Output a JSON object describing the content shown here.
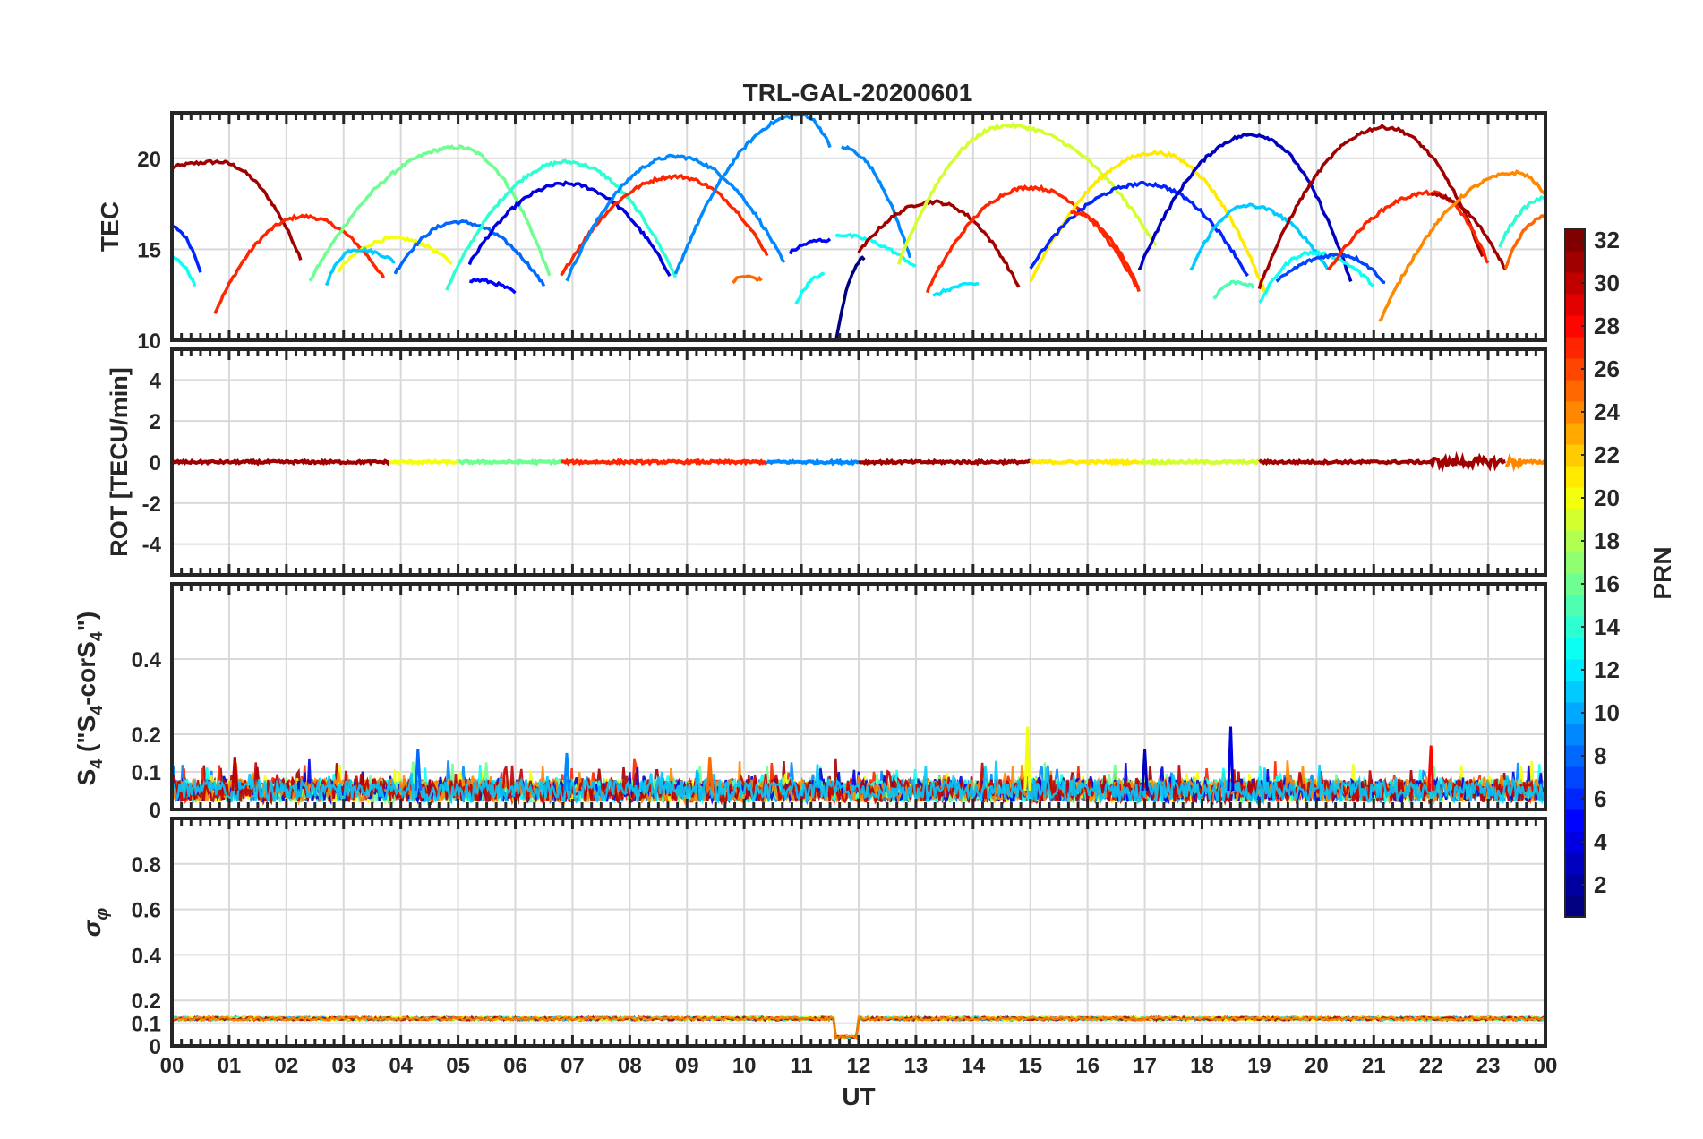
{
  "chart_data": {
    "type": "line",
    "title": "TRL-GAL-20200601",
    "xlabel": "UT",
    "x_ticks": [
      "00",
      "01",
      "02",
      "03",
      "04",
      "05",
      "06",
      "07",
      "08",
      "09",
      "10",
      "11",
      "12",
      "13",
      "14",
      "15",
      "16",
      "17",
      "18",
      "19",
      "20",
      "21",
      "22",
      "23",
      "00"
    ],
    "xlim": [
      0,
      24
    ],
    "panels": [
      {
        "id": "tec",
        "ylabel": "TEC",
        "ylim": [
          10,
          22.5
        ],
        "y_ticks": [
          "10",
          "15",
          "20"
        ],
        "y_tick_values": [
          10,
          15,
          20
        ],
        "arcs": [
          {
            "prn": 31,
            "start": 0.0,
            "end": 2.25,
            "peak_t": 0.8,
            "peak": 19.8,
            "v_start": 19.5,
            "v_end": 14.5
          },
          {
            "prn": 27,
            "start": 0.75,
            "end": 3.7,
            "peak_t": 2.3,
            "peak": 16.8,
            "v_start": 11.5,
            "v_end": 13.4
          },
          {
            "prn": 6,
            "start": 0.0,
            "end": 0.5,
            "peak_t": 0.0,
            "peak": 16.2,
            "v_start": 16.2,
            "v_end": 13.8
          },
          {
            "prn": 13,
            "start": 0.0,
            "end": 0.4,
            "peak_t": 0.0,
            "peak": 14.5,
            "v_start": 14.5,
            "v_end": 13.0
          },
          {
            "prn": 16,
            "start": 2.4,
            "end": 6.6,
            "peak_t": 5.0,
            "peak": 20.6,
            "v_start": 13.2,
            "v_end": 13.5
          },
          {
            "prn": 20,
            "start": 2.9,
            "end": 4.9,
            "peak_t": 3.9,
            "peak": 15.6,
            "v_start": 13.8,
            "v_end": 14.2
          },
          {
            "prn": 11,
            "start": 2.7,
            "end": 3.9,
            "peak_t": 3.2,
            "peak": 15.0,
            "v_start": 13.1,
            "v_end": 14.3
          },
          {
            "prn": 8,
            "start": 3.9,
            "end": 6.5,
            "peak_t": 5.0,
            "peak": 16.5,
            "v_start": 13.7,
            "v_end": 13.0
          },
          {
            "prn": 14,
            "start": 4.8,
            "end": 8.8,
            "peak_t": 6.9,
            "peak": 19.8,
            "v_start": 12.8,
            "v_end": 13.5
          },
          {
            "prn": 4,
            "start": 5.2,
            "end": 8.7,
            "peak_t": 6.9,
            "peak": 18.6,
            "v_start": 14.2,
            "v_end": 13.6
          },
          {
            "prn": 5,
            "start": 5.2,
            "end": 6.0,
            "peak_t": 5.3,
            "peak": 13.3,
            "v_start": 13.2,
            "v_end": 12.6
          },
          {
            "prn": 27,
            "start": 6.8,
            "end": 10.4,
            "peak_t": 8.8,
            "peak": 19.0,
            "v_start": 13.5,
            "v_end": 14.7
          },
          {
            "prn": 9,
            "start": 6.9,
            "end": 10.7,
            "peak_t": 8.8,
            "peak": 20.1,
            "v_start": 13.3,
            "v_end": 14.2
          },
          {
            "prn": 9,
            "start": 8.8,
            "end": 11.5,
            "peak_t": 11.0,
            "peak": 22.4,
            "v_start": 13.6,
            "v_end": 20.6
          },
          {
            "prn": 25,
            "start": 9.8,
            "end": 10.3,
            "peak_t": 10.0,
            "peak": 13.5,
            "v_start": 13.2,
            "v_end": 13.3
          },
          {
            "prn": 5,
            "start": 10.8,
            "end": 11.5,
            "peak_t": 11.4,
            "peak": 15.5,
            "v_start": 14.8,
            "v_end": 15.5
          },
          {
            "prn": 13,
            "start": 10.9,
            "end": 11.4,
            "peak_t": 11.4,
            "peak": 13.6,
            "v_start": 12.0,
            "v_end": 13.6
          },
          {
            "prn": 9,
            "start": 11.7,
            "end": 12.9,
            "peak_t": 11.7,
            "peak": 20.6,
            "v_start": 20.6,
            "v_end": 14.5
          },
          {
            "prn": 13,
            "start": 11.6,
            "end": 13.0,
            "peak_t": 11.6,
            "peak": 15.8,
            "v_start": 15.8,
            "v_end": 14.0
          },
          {
            "prn": 1,
            "start": 11.6,
            "end": 12.1,
            "peak_t": 12.1,
            "peak": 14.5,
            "v_start": 9.9,
            "v_end": 14.5
          },
          {
            "prn": 31,
            "start": 12.0,
            "end": 14.8,
            "peak_t": 13.3,
            "peak": 17.6,
            "v_start": 14.8,
            "v_end": 12.9
          },
          {
            "prn": 27,
            "start": 13.2,
            "end": 16.9,
            "peak_t": 15.0,
            "peak": 18.4,
            "v_start": 12.7,
            "v_end": 12.7
          },
          {
            "prn": 19,
            "start": 12.7,
            "end": 17.2,
            "peak_t": 14.6,
            "peak": 21.8,
            "v_start": 14.2,
            "v_end": 15.2
          },
          {
            "prn": 12,
            "start": 13.3,
            "end": 14.1,
            "peak_t": 14.1,
            "peak": 13.1,
            "v_start": 12.4,
            "v_end": 13.1
          },
          {
            "prn": 21,
            "start": 15.0,
            "end": 19.1,
            "peak_t": 17.2,
            "peak": 20.3,
            "v_start": 13.2,
            "v_end": 12.6
          },
          {
            "prn": 6,
            "start": 15.0,
            "end": 18.8,
            "peak_t": 17.0,
            "peak": 18.6,
            "v_start": 14.0,
            "v_end": 13.5
          },
          {
            "prn": 27,
            "start": 15.7,
            "end": 16.9,
            "peak_t": 15.7,
            "peak": 17.0,
            "v_start": 17.0,
            "v_end": 12.8
          },
          {
            "prn": 3,
            "start": 16.9,
            "end": 20.6,
            "peak_t": 18.9,
            "peak": 21.3,
            "v_start": 13.9,
            "v_end": 13.2
          },
          {
            "prn": 11,
            "start": 17.8,
            "end": 20.2,
            "peak_t": 18.8,
            "peak": 17.4,
            "v_start": 13.8,
            "v_end": 13.9
          },
          {
            "prn": 15,
            "start": 18.2,
            "end": 18.9,
            "peak_t": 18.6,
            "peak": 13.2,
            "v_start": 12.3,
            "v_end": 12.9
          },
          {
            "prn": 13,
            "start": 19.0,
            "end": 21.0,
            "peak_t": 19.9,
            "peak": 14.8,
            "v_start": 12.0,
            "v_end": 13.0
          },
          {
            "prn": 7,
            "start": 19.3,
            "end": 21.2,
            "peak_t": 20.4,
            "peak": 14.7,
            "v_start": 13.2,
            "v_end": 13.1
          },
          {
            "prn": 31,
            "start": 19.0,
            "end": 22.9,
            "peak_t": 21.2,
            "peak": 21.7,
            "v_start": 12.9,
            "v_end": 14.6
          },
          {
            "prn": 27,
            "start": 20.2,
            "end": 23.0,
            "peak_t": 22.0,
            "peak": 18.1,
            "v_start": 13.8,
            "v_end": 14.2
          },
          {
            "prn": 31,
            "start": 22.0,
            "end": 23.3,
            "peak_t": 22.0,
            "peak": 18.0,
            "v_start": 18.0,
            "v_end": 13.9
          },
          {
            "prn": 24,
            "start": 21.1,
            "end": 24.0,
            "peak_t": 23.5,
            "peak": 19.2,
            "v_start": 11.0,
            "v_end": 17.9
          },
          {
            "prn": 14,
            "start": 23.2,
            "end": 24.0,
            "peak_t": 24.0,
            "peak": 17.8,
            "v_start": 15.2,
            "v_end": 17.8
          },
          {
            "prn": 25,
            "start": 23.3,
            "end": 24.0,
            "peak_t": 24.0,
            "peak": 16.8,
            "v_start": 14.0,
            "v_end": 16.8
          }
        ]
      },
      {
        "id": "rot",
        "ylabel": "ROT [TECU/min]",
        "ylim": [
          -5.5,
          5.5
        ],
        "y_ticks": [
          "-4",
          "-2",
          "0",
          "2",
          "4"
        ],
        "y_tick_values": [
          -4,
          -2,
          0,
          2,
          4
        ],
        "baseline": 0,
        "segments": [
          {
            "prn": 31,
            "start": 0.0,
            "end": 3.8
          },
          {
            "prn": 20,
            "start": 3.8,
            "end": 5.0
          },
          {
            "prn": 16,
            "start": 5.0,
            "end": 6.8
          },
          {
            "prn": 27,
            "start": 6.8,
            "end": 10.4
          },
          {
            "prn": 9,
            "start": 10.4,
            "end": 12.0
          },
          {
            "prn": 31,
            "start": 12.0,
            "end": 15.0
          },
          {
            "prn": 21,
            "start": 15.0,
            "end": 16.9
          },
          {
            "prn": 19,
            "start": 16.9,
            "end": 19.0
          },
          {
            "prn": 31,
            "start": 19.0,
            "end": 23.3
          },
          {
            "prn": 24,
            "start": 23.3,
            "end": 24.0
          }
        ]
      },
      {
        "id": "s4",
        "ylabel": "S4 (\"S4-corS4\")",
        "ylim": [
          0,
          0.6
        ],
        "y_ticks": [
          "0",
          "0.1",
          "0.2",
          "0.4"
        ],
        "y_tick_values": [
          0,
          0.1,
          0.2,
          0.4
        ],
        "typical_level": 0.05,
        "peaks": [
          {
            "t": 14.95,
            "v": 0.22,
            "prn": 20
          },
          {
            "t": 18.5,
            "v": 0.22,
            "prn": 4
          },
          {
            "t": 22.0,
            "v": 0.17,
            "prn": 28
          },
          {
            "t": 4.3,
            "v": 0.16,
            "prn": 8
          },
          {
            "t": 17.0,
            "v": 0.16,
            "prn": 3
          },
          {
            "t": 1.1,
            "v": 0.14,
            "prn": 30
          },
          {
            "t": 6.9,
            "v": 0.15,
            "prn": 9
          },
          {
            "t": 9.4,
            "v": 0.14,
            "prn": 25
          }
        ]
      },
      {
        "id": "sigma_phi",
        "ylabel": "σφ",
        "ylim": [
          0,
          1.0
        ],
        "y_ticks": [
          "0",
          "0.1",
          "0.2",
          "0.4",
          "0.6",
          "0.8"
        ],
        "y_tick_values": [
          0,
          0.1,
          0.2,
          0.4,
          0.6,
          0.8
        ],
        "level": 0.12,
        "drop": {
          "start": 11.6,
          "end": 12.0,
          "value": 0.04
        }
      }
    ],
    "colorbar": {
      "label": "PRN",
      "colormap": "jet",
      "range": [
        1,
        32
      ],
      "ticks": [
        "2",
        "4",
        "6",
        "8",
        "10",
        "12",
        "14",
        "16",
        "18",
        "20",
        "22",
        "24",
        "26",
        "28",
        "30",
        "32"
      ],
      "tick_values": [
        2,
        4,
        6,
        8,
        10,
        12,
        14,
        16,
        18,
        20,
        22,
        24,
        26,
        28,
        30,
        32
      ]
    }
  }
}
